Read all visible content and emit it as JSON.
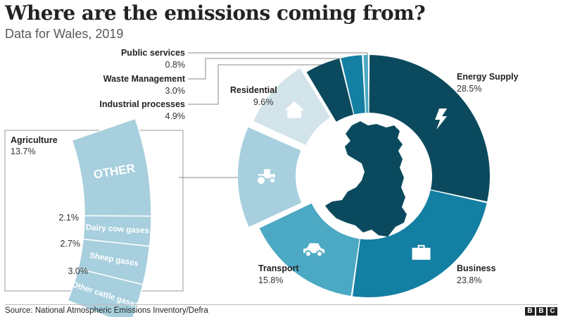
{
  "header": {
    "title": "Where are the emissions coming from?",
    "subtitle": "Data for Wales, 2019"
  },
  "footer": {
    "source": "Source: National Atmospheric Emissions Inventory/Defra",
    "logo_letters": [
      "B",
      "B",
      "C"
    ]
  },
  "chart_data": {
    "type": "pie",
    "style": "donut",
    "center_image": "map-of-wales",
    "slices": [
      {
        "id": "energy",
        "name": "Energy Supply",
        "value_label": "28.5%",
        "value": 28.5,
        "color": "#0b4a5e",
        "icon": "lightning-icon"
      },
      {
        "id": "business",
        "name": "Business",
        "value_label": "23.8%",
        "value": 23.8,
        "color": "#137fa2",
        "icon": "briefcase-icon"
      },
      {
        "id": "transport",
        "name": "Transport",
        "value_label": "15.8%",
        "value": 15.8,
        "color": "#4ca9c4",
        "icon": "car-icon"
      },
      {
        "id": "agriculture",
        "name": "Agriculture",
        "value_label": "13.7%",
        "value": 13.7,
        "color": "#a7cfdd",
        "icon": "tractor-icon"
      },
      {
        "id": "residential",
        "name": "Residential",
        "value_label": "9.6%",
        "value": 9.6,
        "color": "#d2e3ea",
        "icon": "house-icon"
      },
      {
        "id": "industrial",
        "name": "Industrial processes",
        "value_label": "4.9%",
        "value": 4.9,
        "color": "#0b4a5e",
        "icon": ""
      },
      {
        "id": "waste",
        "name": "Waste Management",
        "value_label": "3.0%",
        "value": 3.0,
        "color": "#137fa2",
        "icon": ""
      },
      {
        "id": "public",
        "name": "Public services",
        "value_label": "0.8%",
        "value": 0.8,
        "color": "#4ca9c4",
        "icon": ""
      }
    ],
    "agriculture_breakdown": [
      {
        "name": "OTHER",
        "value_label": "",
        "value": 6.9
      },
      {
        "name": "Dairy cow gases",
        "value_label": "2.1%",
        "value": 2.1
      },
      {
        "name": "Sheep gases",
        "value_label": "2.7%",
        "value": 2.7
      },
      {
        "name": "Other cattle gases",
        "value_label": "3.0%",
        "value": 3.0
      }
    ],
    "breakdown_color": "#a7cfdd"
  }
}
